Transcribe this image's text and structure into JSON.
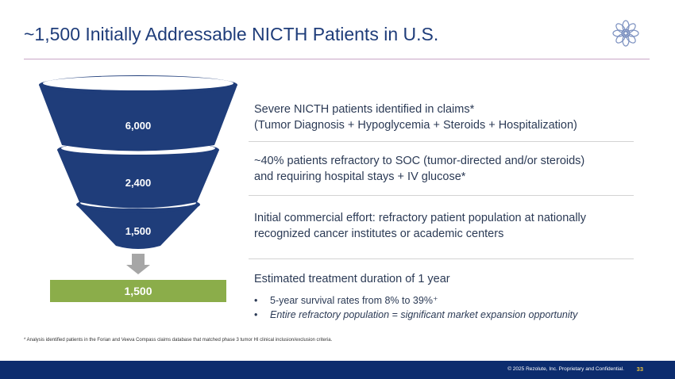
{
  "header": {
    "title": "~1,500 Initially Addressable NICTH Patients in U.S."
  },
  "funnel": {
    "tiers": [
      {
        "label": "6,000"
      },
      {
        "label": "2,400"
      },
      {
        "label": "1,500"
      }
    ],
    "result_label": "1,500"
  },
  "descriptions": {
    "tier1": {
      "line1": "Severe NICTH patients identified in claims*",
      "line2": "(Tumor Diagnosis + Hypoglycemia + Steroids + Hospitalization)"
    },
    "tier2": {
      "line1": "~40% patients refractory to SOC (tumor-directed and/or steroids)",
      "line2": "and requiring hospital stays + IV glucose*"
    },
    "tier3": {
      "line1": "Initial commercial effort: refractory patient population at nationally",
      "line2": "recognized cancer institutes or academic centers"
    },
    "result": {
      "heading": "Estimated treatment duration of 1 year",
      "bullet_marker": "•",
      "bullet1": "5-year survival rates from 8% to 39%⁺",
      "bullet2": "Entire refractory population = significant market expansion opportunity"
    }
  },
  "footnote": "* Analysis identified patients in the Forian and Veeva Compass claims database that matched phase 3 tumor HI clinical inclusion/exclusion criteria.",
  "footer": {
    "copyright": "© 2025 Rezolute, Inc. Proprietary and Confidential.",
    "page_number": "33"
  },
  "colors": {
    "funnel_blue": "#1f3d7a",
    "result_green": "#8bad4a",
    "footer_navy": "#0c2c6e",
    "title_blue": "#1f3d7a"
  }
}
